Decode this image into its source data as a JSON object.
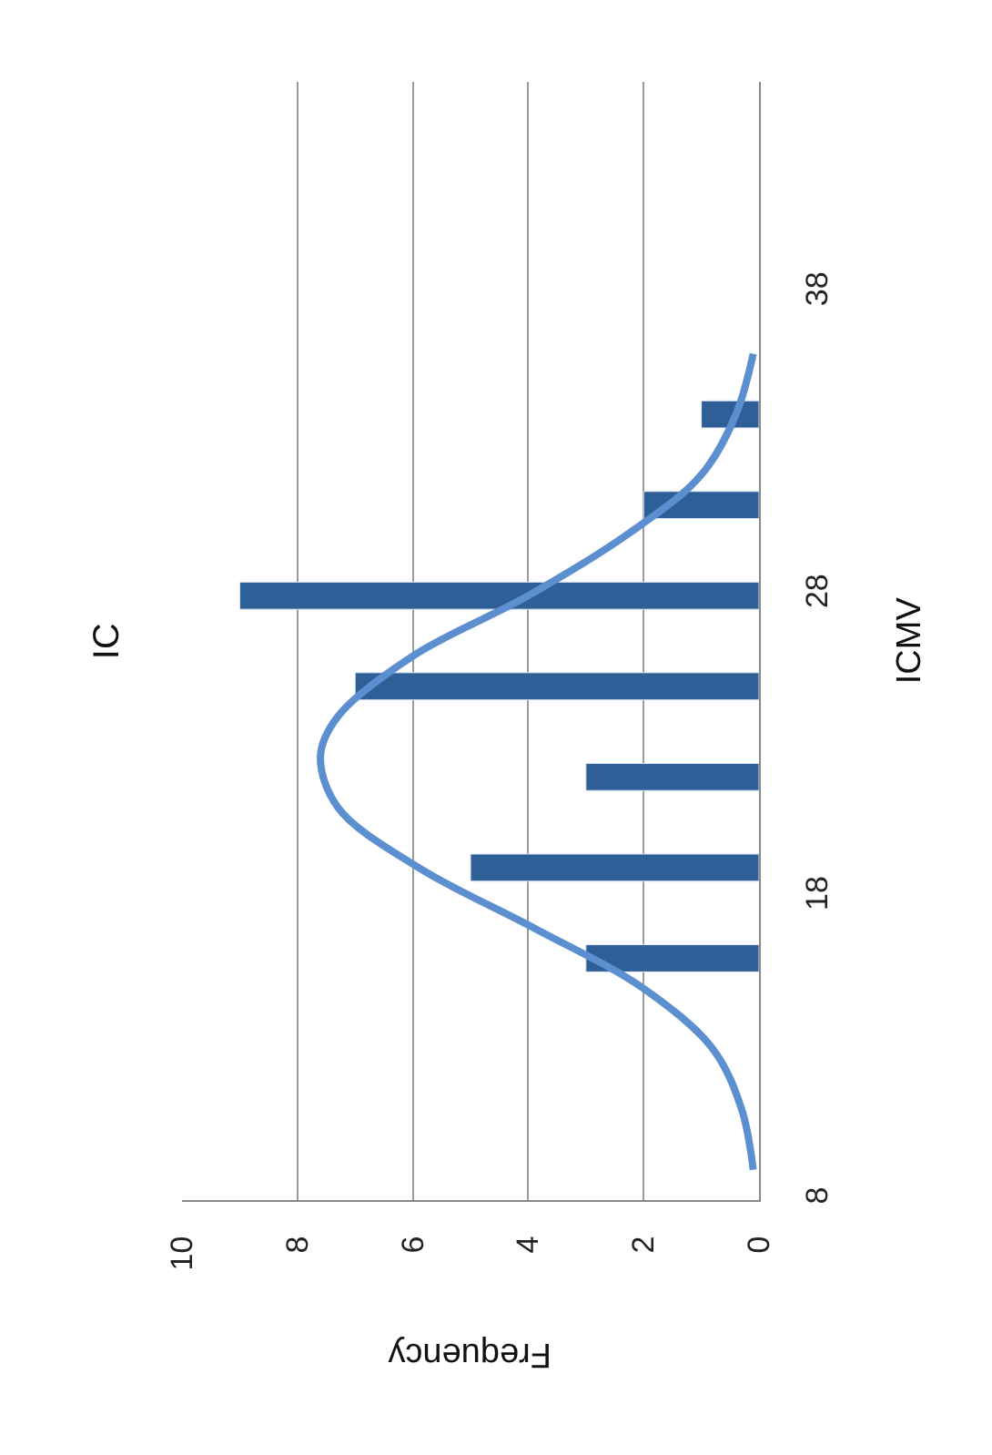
{
  "chart_data": {
    "type": "bar",
    "orientation": "horizontal",
    "title": "IC",
    "xlabel": "Frequency",
    "ylabel": "ICMV",
    "x": [
      16,
      19,
      22,
      25,
      28,
      31,
      34
    ],
    "series": [
      {
        "color": "#2e5f96",
        "values": [
          3,
          5,
          3,
          7,
          9,
          2,
          1
        ]
      },
      {
        "type": "line",
        "color": "#5b8fd0",
        "x": [
          9,
          11,
          13,
          15,
          17,
          19,
          21,
          22.7,
          24,
          26,
          28,
          30,
          32,
          34,
          36
        ],
        "values": [
          0.1,
          0.3,
          0.8,
          2.0,
          3.9,
          5.9,
          7.3,
          7.6,
          7.3,
          6.0,
          4.0,
          2.3,
          1.0,
          0.4,
          0.1
        ]
      }
    ],
    "xlim": [
      10,
      0
    ],
    "xticks": [
      0,
      2,
      4,
      6,
      8,
      10
    ],
    "ylim": [
      8,
      45
    ],
    "yticks": [
      8,
      18,
      28,
      38
    ],
    "grid": "x",
    "marker": "none",
    "line_style": "solid"
  }
}
